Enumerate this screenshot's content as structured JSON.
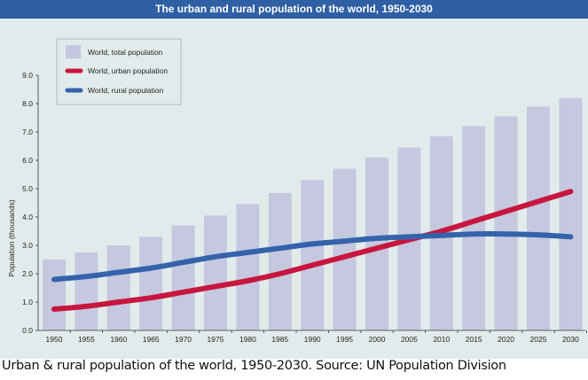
{
  "caption": "Urban & rural population of the world, 1950-2030.  Source: UN Population Division",
  "chart_data": {
    "type": "bar",
    "title": "The urban and rural population of the world, 1950-2030",
    "xlabel": "",
    "ylabel": "Population (thousands)",
    "ylim": [
      0,
      9
    ],
    "yticks": [
      "0.0",
      "1.0",
      "2.0",
      "3.0",
      "4.0",
      "5.0",
      "6.0",
      "7.0",
      "8.0",
      "9.0"
    ],
    "categories": [
      "1950",
      "1955",
      "1960",
      "1965",
      "1970",
      "1975",
      "1980",
      "1985",
      "1990",
      "1995",
      "2000",
      "2005",
      "2010",
      "2015",
      "2020",
      "2025",
      "2030"
    ],
    "grid": false,
    "legend_placement": "top-left",
    "series": [
      {
        "name": "World, total population",
        "type": "bar",
        "color": "#c5c8df",
        "values": [
          2.5,
          2.75,
          3.0,
          3.3,
          3.7,
          4.05,
          4.45,
          4.85,
          5.3,
          5.7,
          6.1,
          6.45,
          6.85,
          7.2,
          7.55,
          7.9,
          8.2
        ]
      },
      {
        "name": "World, urban population",
        "type": "line",
        "color": "#c8163f",
        "values": [
          0.75,
          0.85,
          1.0,
          1.15,
          1.35,
          1.55,
          1.75,
          2.0,
          2.3,
          2.6,
          2.9,
          3.2,
          3.5,
          3.85,
          4.2,
          4.55,
          4.9
        ]
      },
      {
        "name": "World, rural population",
        "type": "line",
        "color": "#3463ab",
        "values": [
          1.8,
          1.9,
          2.05,
          2.2,
          2.4,
          2.6,
          2.75,
          2.9,
          3.05,
          3.15,
          3.25,
          3.3,
          3.35,
          3.4,
          3.4,
          3.37,
          3.3
        ]
      }
    ]
  }
}
